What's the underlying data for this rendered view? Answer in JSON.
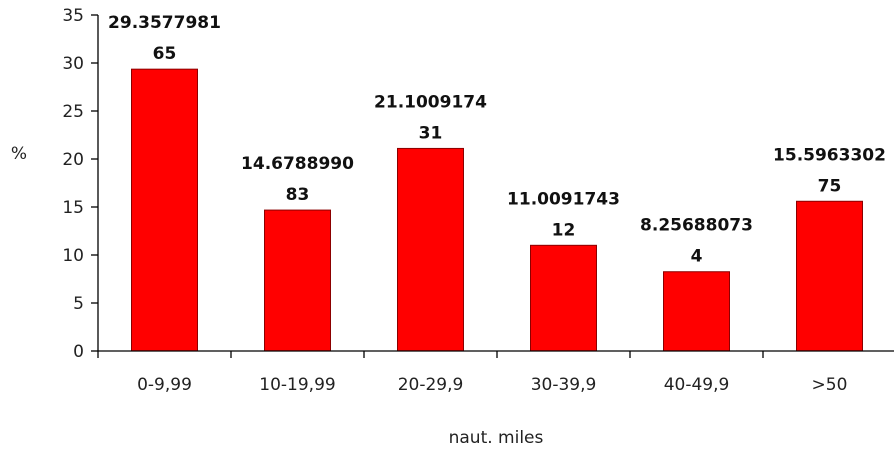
{
  "chart_data": {
    "type": "bar",
    "categories": [
      "0-9,99",
      "10-19,99",
      "20-29,9",
      "30-39,9",
      "40-49,9",
      ">50"
    ],
    "values": [
      29.357798165,
      14.678899083,
      21.100917431,
      11.009174312,
      8.256880734,
      15.596330275
    ],
    "data_labels": [
      [
        "29.3577981",
        "65"
      ],
      [
        "14.6788990",
        "83"
      ],
      [
        "21.1009174",
        "31"
      ],
      [
        "11.0091743",
        "12"
      ],
      [
        "8.25688073",
        "4"
      ],
      [
        "15.5963302",
        "75"
      ]
    ],
    "xlabel": "naut. miles",
    "ylabel": "%",
    "ylim": [
      0,
      35
    ],
    "yticks": [
      "0",
      "5",
      "10",
      "15",
      "20",
      "25",
      "30",
      "35"
    ],
    "ytick_values": [
      0,
      5,
      10,
      15,
      20,
      25,
      30,
      35
    ],
    "grid": false,
    "bar_color": "#ff0000",
    "bar_edge_color": "#8b0000"
  }
}
